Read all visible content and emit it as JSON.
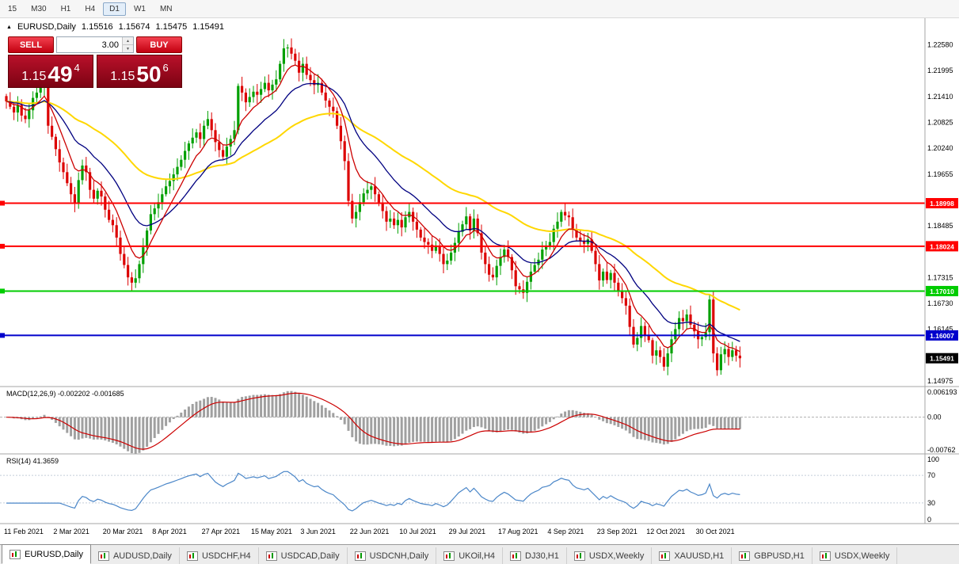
{
  "toolbar": {
    "timeframes": [
      {
        "label": "15",
        "active": false
      },
      {
        "label": "M30",
        "active": false
      },
      {
        "label": "H1",
        "active": false
      },
      {
        "label": "H4",
        "active": false
      },
      {
        "label": "D1",
        "active": true
      },
      {
        "label": "W1",
        "active": false
      },
      {
        "label": "MN",
        "active": false
      }
    ]
  },
  "header": {
    "symbol": "EURUSD,Daily"
  },
  "trade_panel": {
    "sell_label": "SELL",
    "buy_label": "BUY",
    "volume": "3.00",
    "sell_price": {
      "base": "1.15",
      "pips": "49",
      "sup": "4"
    },
    "buy_price": {
      "base": "1.15",
      "pips": "50",
      "sup": "6"
    }
  },
  "chart_data": {
    "type": "candlestick",
    "symbol": "EURUSD",
    "timeframe": "Daily",
    "ohlc_display": {
      "open": "1.15516",
      "high": "1.15674",
      "low": "1.15475",
      "close": "1.15491"
    },
    "y_range": {
      "min": 1.1485,
      "max": 1.232
    },
    "price_axis_ticks": [
      "1.14975",
      "1.15560",
      "1.16145",
      "1.16730",
      "1.17315",
      "1.17900",
      "1.18485",
      "1.19070",
      "1.19655",
      "1.20240",
      "1.20825",
      "1.21410",
      "1.21995",
      "1.22580"
    ],
    "closes": [
      1.213,
      1.2118,
      1.2105,
      1.2122,
      1.2098,
      1.209,
      1.211,
      1.2138,
      1.215,
      1.2162,
      1.2175,
      1.2075,
      1.205,
      1.2022,
      1.1992,
      1.197,
      1.1945,
      1.192,
      1.19,
      1.1952,
      1.1985,
      1.197,
      1.193,
      1.191,
      1.1928,
      1.1915,
      1.1885,
      1.1862,
      1.185,
      1.1822,
      1.1785,
      1.176,
      1.1732,
      1.172,
      1.173,
      1.1762,
      1.18,
      1.1838,
      1.1875,
      1.1888,
      1.1902,
      1.192,
      1.1938,
      1.195,
      1.1965,
      1.1982,
      1.1998,
      1.2018,
      1.2035,
      1.2048,
      1.206,
      1.2045,
      1.2075,
      1.209,
      1.2065,
      1.2038,
      1.202,
      1.2005,
      1.2028,
      1.2045,
      1.2065,
      1.2165,
      1.215,
      1.2128,
      1.214,
      1.2152,
      1.2145,
      1.2158,
      1.2172,
      1.2155,
      1.2168,
      1.218,
      1.2215,
      1.225,
      1.2252,
      1.2238,
      1.2222,
      1.2195,
      1.2215,
      1.219,
      1.2178,
      1.2167,
      1.2172,
      1.215,
      1.2132,
      1.2118,
      1.2108,
      1.2075,
      1.204,
      1.1995,
      1.1905,
      1.1865,
      1.188,
      1.1902,
      1.1922,
      1.193,
      1.1938,
      1.192,
      1.1898,
      1.1882,
      1.1858,
      1.1865,
      1.185,
      1.1862,
      1.1845,
      1.1868,
      1.188,
      1.1858,
      1.184,
      1.1822,
      1.1812,
      1.1806,
      1.1792,
      1.1802,
      1.1785,
      1.1762,
      1.177,
      1.1788,
      1.181,
      1.1835,
      1.1852,
      1.187,
      1.1838,
      1.1865,
      1.1832,
      1.1788,
      1.1762,
      1.1738,
      1.1732,
      1.1758,
      1.1778,
      1.1795,
      1.1778,
      1.1748,
      1.1712,
      1.1705,
      1.1697,
      1.1722,
      1.1745,
      1.176,
      1.1772,
      1.1795,
      1.1802,
      1.1812,
      1.1842,
      1.1858,
      1.188,
      1.1872,
      1.1868,
      1.184,
      1.1822,
      1.1815,
      1.1808,
      1.1818,
      1.1792,
      1.1762,
      1.1725,
      1.1745,
      1.1726,
      1.1742,
      1.172,
      1.17,
      1.1685,
      1.1668,
      1.162,
      1.158,
      1.1595,
      1.1622,
      1.1602,
      1.159,
      1.1555,
      1.1567,
      1.1552,
      1.153,
      1.156,
      1.1592,
      1.1615,
      1.164,
      1.1633,
      1.1648,
      1.1625,
      1.161,
      1.1592,
      1.1597,
      1.1608,
      1.1682,
      1.156,
      1.1522,
      1.1558,
      1.157,
      1.1552,
      1.1567,
      1.1555,
      1.1549
    ],
    "moving_averages": [
      {
        "name": "fast",
        "period": 8,
        "color": "#cc0000"
      },
      {
        "name": "medium",
        "period": 20,
        "color": "#000080"
      },
      {
        "name": "slow",
        "period": 55,
        "color": "#ffd700"
      }
    ],
    "horizontal_lines": [
      {
        "price": 1.18998,
        "label": "1.18998",
        "color": "#ff0000"
      },
      {
        "price": 1.18024,
        "label": "1.18024",
        "color": "#ff0000"
      },
      {
        "price": 1.1701,
        "label": "1.17010",
        "color": "#00cc00"
      },
      {
        "price": 1.16007,
        "label": "1.16007",
        "color": "#0000cc"
      }
    ],
    "current_price": {
      "price": 1.15491,
      "label": "1.15491",
      "color": "#000000"
    },
    "date_labels": [
      {
        "i": 0,
        "t": "11 Feb 2021"
      },
      {
        "i": 13,
        "t": "2 Mar 2021"
      },
      {
        "i": 26,
        "t": "20 Mar 2021"
      },
      {
        "i": 39,
        "t": "8 Apr 2021"
      },
      {
        "i": 52,
        "t": "27 Apr 2021"
      },
      {
        "i": 65,
        "t": "15 May 2021"
      },
      {
        "i": 78,
        "t": "3 Jun 2021"
      },
      {
        "i": 91,
        "t": "22 Jun 2021"
      },
      {
        "i": 104,
        "t": "10 Jul 2021"
      },
      {
        "i": 117,
        "t": "29 Jul 2021"
      },
      {
        "i": 130,
        "t": "17 Aug 2021"
      },
      {
        "i": 143,
        "t": "4 Sep 2021"
      },
      {
        "i": 156,
        "t": "23 Sep 2021"
      },
      {
        "i": 169,
        "t": "12 Oct 2021"
      },
      {
        "i": 182,
        "t": "30 Oct 2021"
      }
    ],
    "macd": {
      "title": "MACD(12,26,9) -0.002202 -0.001685",
      "fast": 12,
      "slow": 26,
      "signal": 9,
      "axis_labels": [
        "0.006193",
        "0.00",
        "-0.00762"
      ],
      "range": {
        "min": -0.00762,
        "max": 0.006193
      },
      "histogram_color": "#a0a0a0",
      "signal_color": "#cc0000"
    },
    "rsi": {
      "title": "RSI(14) 41.3659",
      "period": 14,
      "value": 41.3659,
      "levels": [
        70,
        30
      ],
      "axis_labels": [
        "100",
        "70",
        "30",
        "0"
      ],
      "line_color": "#4a86c8"
    }
  },
  "tabs": [
    {
      "label": "EURUSD,Daily",
      "active": true
    },
    {
      "label": "AUDUSD,Daily",
      "active": false
    },
    {
      "label": "USDCHF,H4",
      "active": false
    },
    {
      "label": "USDCAD,Daily",
      "active": false
    },
    {
      "label": "USDCNH,Daily",
      "active": false
    },
    {
      "label": "UKOil,H4",
      "active": false
    },
    {
      "label": "DJ30,H1",
      "active": false
    },
    {
      "label": "USDX,Weekly",
      "active": false
    },
    {
      "label": "XAUUSD,H1",
      "active": false
    },
    {
      "label": "GBPUSD,H1",
      "active": false
    },
    {
      "label": "USDX,Weekly",
      "active": false
    }
  ]
}
